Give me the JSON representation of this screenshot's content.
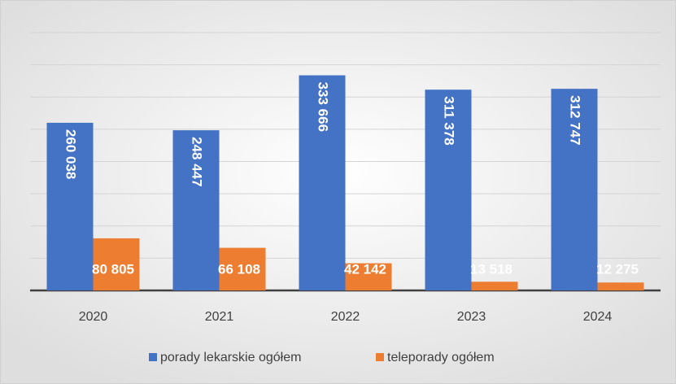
{
  "chart_data": {
    "type": "bar",
    "categories": [
      "2020",
      "2021",
      "2022",
      "2023",
      "2024"
    ],
    "series": [
      {
        "name": "porady lekarskie ogółem",
        "color": "#4472c4",
        "values": [
          260038,
          248447,
          333666,
          311378,
          312747
        ],
        "value_labels": [
          "260 038",
          "248 447",
          "333 666",
          "311 378",
          "312 747"
        ]
      },
      {
        "name": "teleporady ogółem",
        "color": "#ed7d31",
        "values": [
          80805,
          66108,
          42142,
          13518,
          12275
        ],
        "value_labels": [
          "80 805",
          "66 108",
          "42 142",
          "13 518",
          "12 275"
        ]
      }
    ],
    "ylim": [
      0,
      400000
    ],
    "yticks": [
      0,
      50000,
      100000,
      150000,
      200000,
      250000,
      300000,
      350000,
      400000
    ],
    "grid": true
  }
}
